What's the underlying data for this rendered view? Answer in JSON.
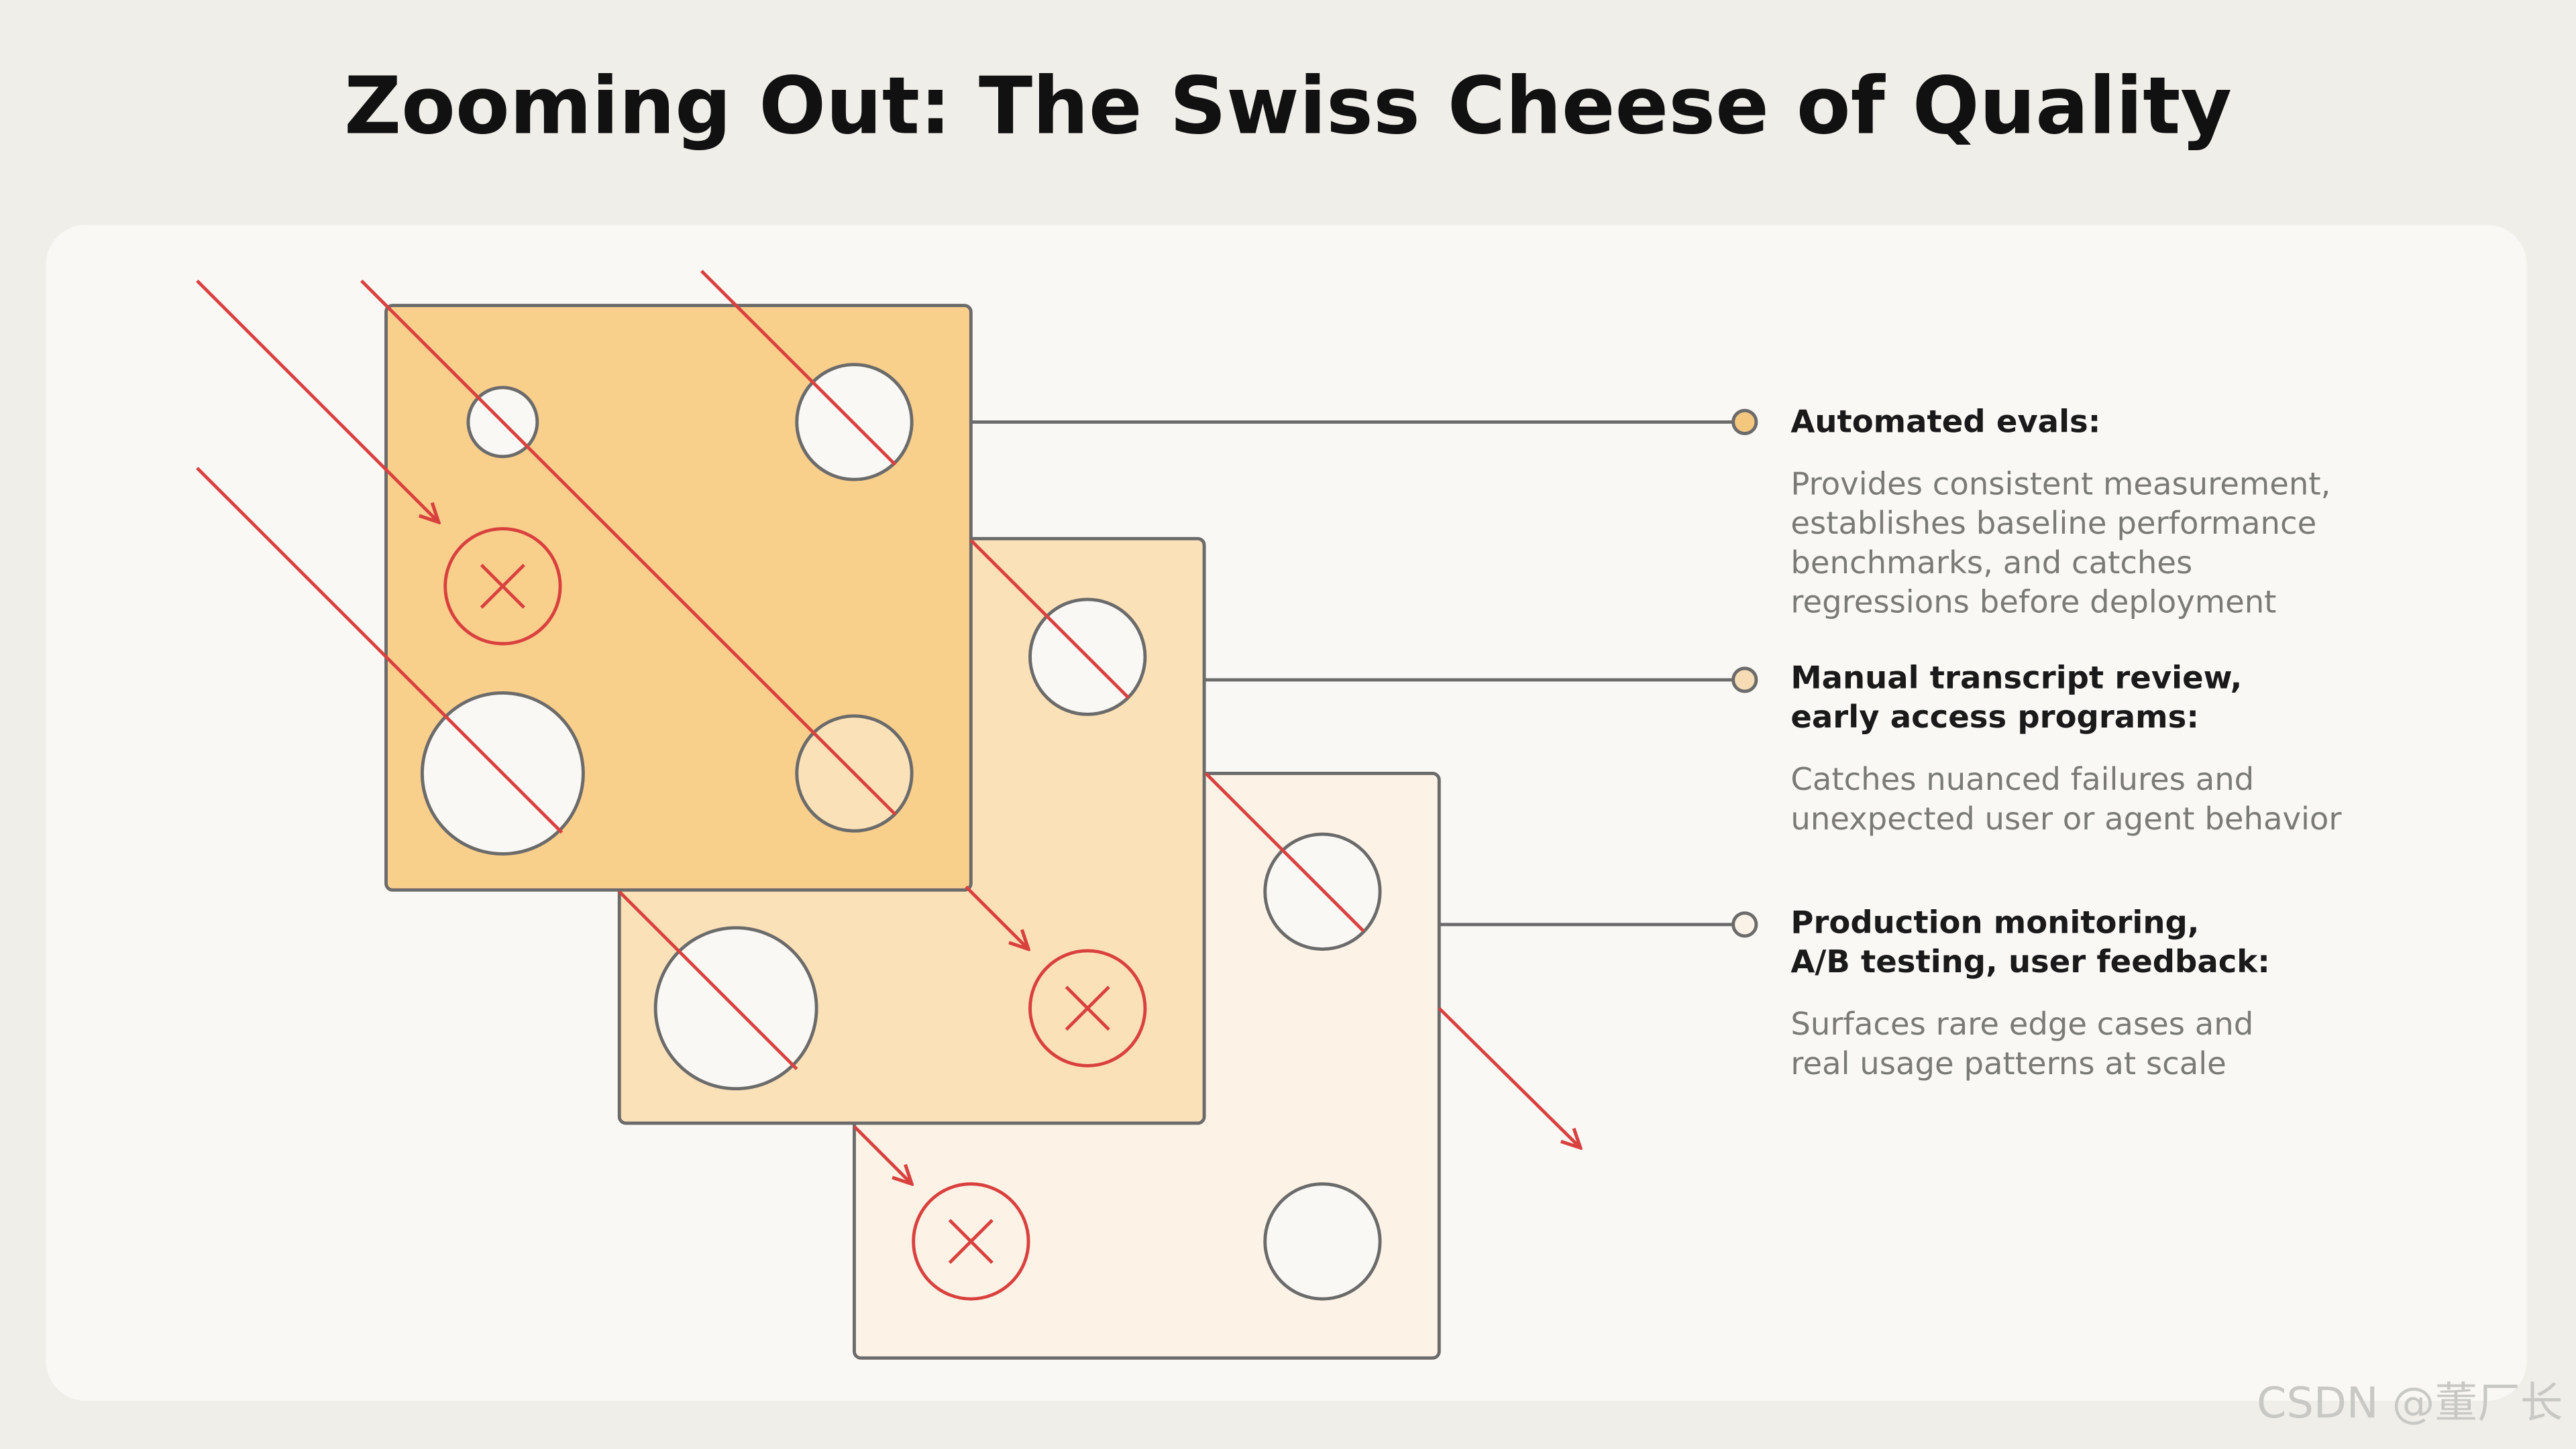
{
  "title": "Zooming Out: The Swiss Cheese of Quality",
  "layers": [
    {
      "label": [
        "Automated evals:"
      ],
      "description": [
        "Provides consistent measurement,",
        "establishes baseline performance",
        "benchmarks, and catches",
        "regressions before deployment"
      ]
    },
    {
      "label": [
        "Manual transcript review,",
        "early access programs:"
      ],
      "description": [
        "Catches nuanced failures and",
        "unexpected user or agent behavior"
      ]
    },
    {
      "label": [
        "Production monitoring,",
        "A/B testing, user feedback:"
      ],
      "description": [
        "Surfaces rare edge cases and",
        "real usage patterns at scale"
      ]
    }
  ],
  "watermark": "CSDN @董厂长"
}
